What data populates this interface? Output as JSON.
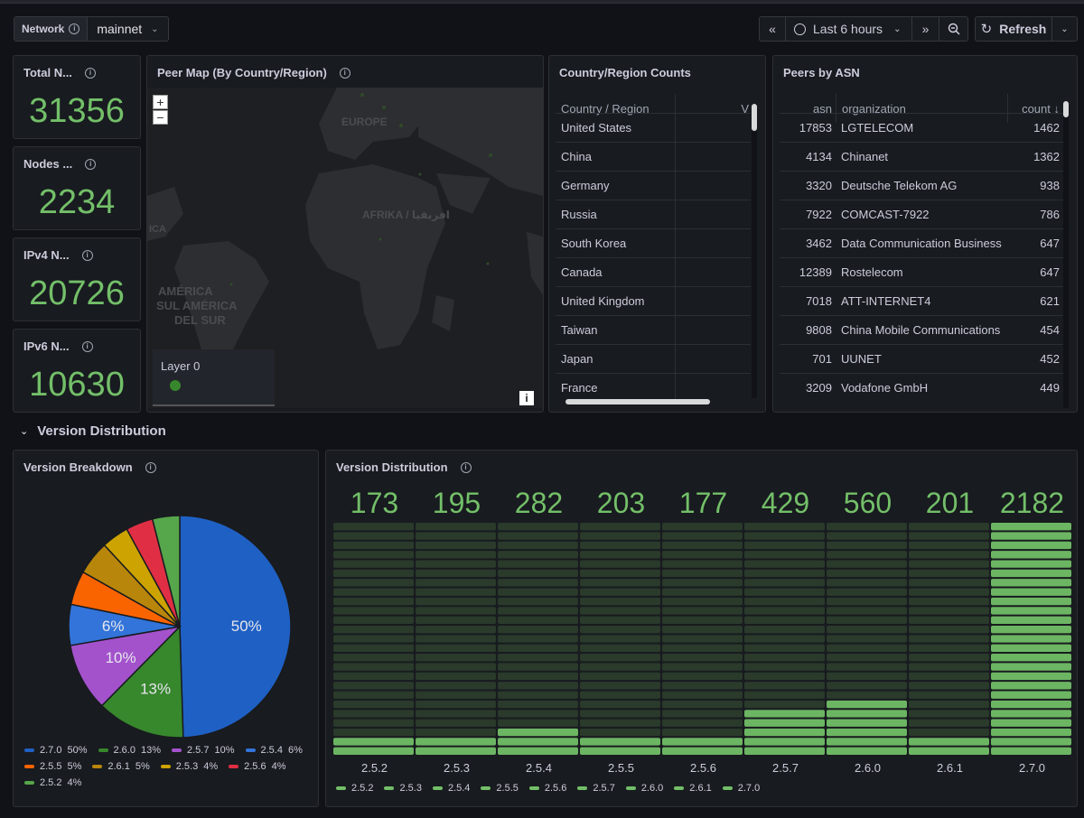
{
  "variable": {
    "label": "Network",
    "value": "mainnet"
  },
  "time_picker": {
    "range": "Last 6 hours",
    "refresh_label": "Refresh"
  },
  "stats": [
    {
      "title": "Total N...",
      "value": "31356"
    },
    {
      "title": "Nodes ...",
      "value": "2234"
    },
    {
      "title": "IPv4 N...",
      "value": "20726"
    },
    {
      "title": "IPv6 N...",
      "value": "10630"
    }
  ],
  "map": {
    "title": "Peer Map (By Country/Region)",
    "zoom_in": "+",
    "zoom_out": "−",
    "layer_label": "Layer 0",
    "info_button": "i",
    "labels": [
      "EUROPE",
      "AFRIKA / افريقيا",
      "ICA",
      "AMÉRICA",
      "SUL AMÉRICA",
      "DEL SUR"
    ]
  },
  "country_table": {
    "title": "Country/Region Counts",
    "col1": "Country / Region",
    "col2": "V",
    "rows": [
      "United States",
      "China",
      "Germany",
      "Russia",
      "South Korea",
      "Canada",
      "United Kingdom",
      "Taiwan",
      "Japan",
      "France"
    ]
  },
  "asn_table": {
    "title": "Peers by ASN",
    "col_asn": "asn",
    "col_org": "organization",
    "col_count": "count ↓",
    "rows": [
      {
        "asn": "17853",
        "org": "LGTELECOM",
        "count": "1462"
      },
      {
        "asn": "4134",
        "org": "Chinanet",
        "count": "1362"
      },
      {
        "asn": "3320",
        "org": "Deutsche Telekom AG",
        "count": "938"
      },
      {
        "asn": "7922",
        "org": "COMCAST-7922",
        "count": "786"
      },
      {
        "asn": "3462",
        "org": "Data Communication Business",
        "count": "647"
      },
      {
        "asn": "12389",
        "org": "Rostelecom",
        "count": "647"
      },
      {
        "asn": "7018",
        "org": "ATT-INTERNET4",
        "count": "621"
      },
      {
        "asn": "9808",
        "org": "China Mobile Communications",
        "count": "454"
      },
      {
        "asn": "701",
        "org": "UUNET",
        "count": "452"
      },
      {
        "asn": "3209",
        "org": "Vodafone GmbH",
        "count": "449"
      }
    ]
  },
  "section_title": "Version Distribution",
  "chart_data": [
    {
      "type": "pie",
      "title": "Version Breakdown",
      "slices": [
        {
          "name": "2.7.0",
          "value": 50,
          "label": "50%",
          "color": "#1f60c4"
        },
        {
          "name": "2.6.0",
          "value": 13,
          "label": "13%",
          "color": "#37872d"
        },
        {
          "name": "2.5.7",
          "value": 10,
          "label": "10%",
          "color": "#a352cc"
        },
        {
          "name": "2.5.4",
          "value": 6,
          "label": "6%",
          "color": "#3274d9"
        },
        {
          "name": "2.5.5",
          "value": 5,
          "label": "5%",
          "color": "#fa6400"
        },
        {
          "name": "2.6.1",
          "value": 5,
          "label": "5%",
          "color": "#b8860b"
        },
        {
          "name": "2.5.3",
          "value": 4,
          "label": "4%",
          "color": "#cca300"
        },
        {
          "name": "2.5.6",
          "value": 4,
          "label": "4%",
          "color": "#e02f44"
        },
        {
          "name": "2.5.2",
          "value": 4,
          "label": "4%",
          "color": "#56a64b"
        }
      ]
    },
    {
      "type": "bar",
      "title": "Version Distribution",
      "categories": [
        "2.5.2",
        "2.5.3",
        "2.5.4",
        "2.5.5",
        "2.5.6",
        "2.5.7",
        "2.6.0",
        "2.6.1",
        "2.7.0"
      ],
      "values": [
        173,
        195,
        282,
        203,
        177,
        429,
        560,
        201,
        2182
      ],
      "ylim": [
        0,
        2182
      ]
    }
  ]
}
